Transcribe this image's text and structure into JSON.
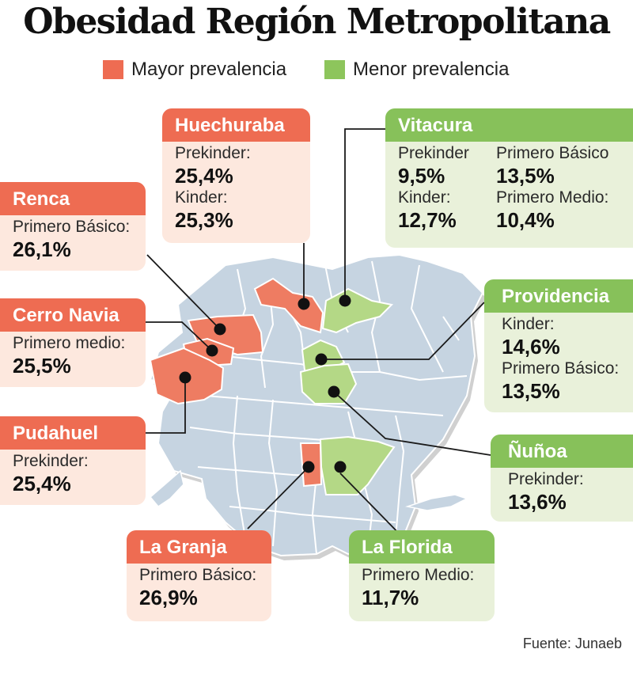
{
  "title": "Obesidad Región Metropolitana",
  "legend": {
    "high": {
      "label": "Mayor prevalencia",
      "color": "#ee6c52"
    },
    "low": {
      "label": "Menor prevalencia",
      "color": "#8dc55c"
    }
  },
  "map_colors": {
    "base": "#c6d4e1",
    "border": "#ffffff",
    "high": "#ee7c62",
    "low": "#b4d886",
    "marker": "#111111"
  },
  "communes": {
    "huechuraba": {
      "name": "Huechuraba",
      "rows": [
        {
          "label": "Prekinder:",
          "value": "25,4%"
        },
        {
          "label": "Kinder:",
          "value": "25,3%"
        }
      ]
    },
    "renca": {
      "name": "Renca",
      "rows": [
        {
          "label": "Primero Básico:",
          "value": "26,1%"
        }
      ]
    },
    "cerro_navia": {
      "name": "Cerro Navia",
      "rows": [
        {
          "label": "Primero medio:",
          "value": "25,5%"
        }
      ]
    },
    "pudahuel": {
      "name": "Pudahuel",
      "rows": [
        {
          "label": "Prekinder:",
          "value": "25,4%"
        }
      ]
    },
    "la_granja": {
      "name": "La Granja",
      "rows": [
        {
          "label": "Primero Básico:",
          "value": "26,9%"
        }
      ]
    },
    "vitacura": {
      "name": "Vitacura",
      "rows": [
        {
          "label": "Prekinder",
          "value": "9,5%"
        },
        {
          "label": "Primero Básico",
          "value": "13,5%"
        },
        {
          "label": "Kinder:",
          "value": "12,7%"
        },
        {
          "label": "Primero Medio:",
          "value": "10,4%"
        }
      ]
    },
    "providencia": {
      "name": "Providencia",
      "rows": [
        {
          "label": "Kinder:",
          "value": "14,6%"
        },
        {
          "label": "Primero Básico:",
          "value": "13,5%"
        }
      ]
    },
    "nunoa": {
      "name": "Ñuñoa",
      "rows": [
        {
          "label": "Prekinder:",
          "value": "13,6%"
        }
      ]
    },
    "la_florida": {
      "name": "La Florida",
      "rows": [
        {
          "label": "Primero Medio:",
          "value": "11,7%"
        }
      ]
    }
  },
  "source": "Fuente: Junaeb"
}
